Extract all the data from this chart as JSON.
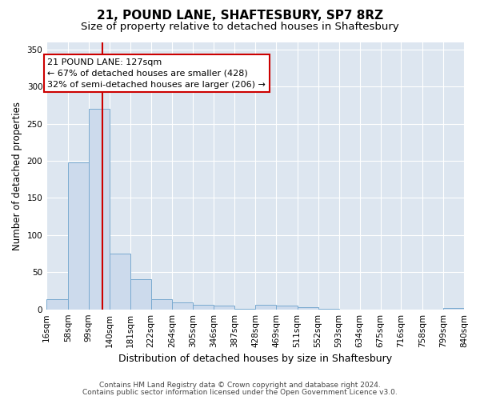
{
  "title": "21, POUND LANE, SHAFTESBURY, SP7 8RZ",
  "subtitle": "Size of property relative to detached houses in Shaftesbury",
  "xlabel": "Distribution of detached houses by size in Shaftesbury",
  "ylabel": "Number of detached properties",
  "bin_edges": [
    16,
    58,
    99,
    140,
    181,
    222,
    264,
    305,
    346,
    387,
    428,
    469,
    511,
    552,
    593,
    634,
    675,
    716,
    758,
    799,
    840
  ],
  "bar_heights": [
    14,
    198,
    270,
    75,
    41,
    14,
    9,
    6,
    5,
    1,
    6,
    5,
    3,
    1,
    0,
    0,
    0,
    0,
    0,
    2
  ],
  "bar_color": "#ccdaec",
  "bar_edge_color": "#7aaad0",
  "property_size": 127,
  "vline_color": "#cc0000",
  "annotation_line1": "21 POUND LANE: 127sqm",
  "annotation_line2": "← 67% of detached houses are smaller (428)",
  "annotation_line3": "32% of semi-detached houses are larger (206) →",
  "annotation_box_edgecolor": "#cc0000",
  "annotation_fill": "#ffffff",
  "ylim": [
    0,
    360
  ],
  "yticks": [
    0,
    50,
    100,
    150,
    200,
    250,
    300,
    350
  ],
  "fig_bg_color": "#ffffff",
  "plot_bg_color": "#dde6f0",
  "grid_color": "#ffffff",
  "footer_line1": "Contains HM Land Registry data © Crown copyright and database right 2024.",
  "footer_line2": "Contains public sector information licensed under the Open Government Licence v3.0.",
  "title_fontsize": 11,
  "subtitle_fontsize": 9.5,
  "ylabel_fontsize": 8.5,
  "xlabel_fontsize": 9,
  "tick_fontsize": 7.5,
  "annotation_fontsize": 8,
  "footer_fontsize": 6.5
}
